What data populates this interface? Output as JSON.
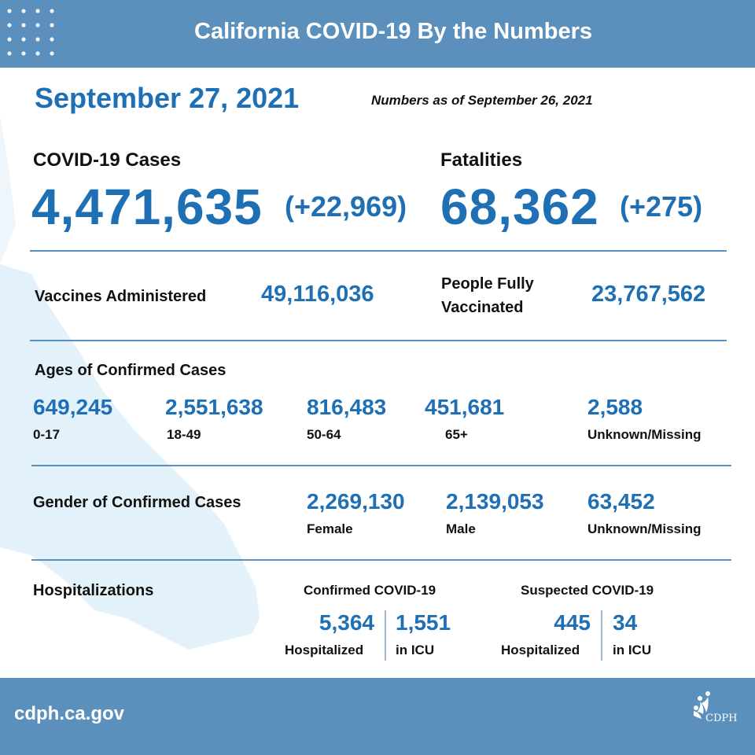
{
  "header": {
    "title": "California COVID-19 By the Numbers"
  },
  "date": "September 27, 2021",
  "as_of": "Numbers as of September 26, 2021",
  "cases": {
    "label": "COVID-19 Cases",
    "value": "4,471,635",
    "delta": "(+22,969)"
  },
  "fatalities": {
    "label": "Fatalities",
    "value": "68,362",
    "delta": "(+275)"
  },
  "vaccines": {
    "label": "Vaccines Administered",
    "value": "49,116,036"
  },
  "fully_vaccinated": {
    "label_line1": "People Fully",
    "label_line2": "Vaccinated",
    "value": "23,767,562"
  },
  "ages": {
    "title": "Ages of Confirmed Cases",
    "groups": [
      {
        "value": "649,245",
        "label": "0-17"
      },
      {
        "value": "2,551,638",
        "label": "18-49"
      },
      {
        "value": "816,483",
        "label": "50-64"
      },
      {
        "value": "451,681",
        "label": "65+"
      },
      {
        "value": "2,588",
        "label": "Unknown/Missing"
      }
    ]
  },
  "gender": {
    "title": "Gender of Confirmed Cases",
    "groups": [
      {
        "value": "2,269,130",
        "label": "Female"
      },
      {
        "value": "2,139,053",
        "label": "Male"
      },
      {
        "value": "63,452",
        "label": "Unknown/Missing"
      }
    ]
  },
  "hospitalizations": {
    "title": "Hospitalizations",
    "confirmed": {
      "title": "Confirmed COVID-19",
      "hospitalized": {
        "value": "5,364",
        "label": "Hospitalized"
      },
      "icu": {
        "value": "1,551",
        "label": "in ICU"
      }
    },
    "suspected": {
      "title": "Suspected COVID-19",
      "hospitalized": {
        "value": "445",
        "label": "Hospitalized"
      },
      "icu": {
        "value": "34",
        "label": "in ICU"
      }
    }
  },
  "footer": {
    "url": "cdph.ca.gov",
    "logo_text": "CDPH"
  },
  "colors": {
    "header_bg": "#5b8fbc",
    "accent_blue": "#1f6fb5",
    "map_fill": "#e3f1fb"
  }
}
